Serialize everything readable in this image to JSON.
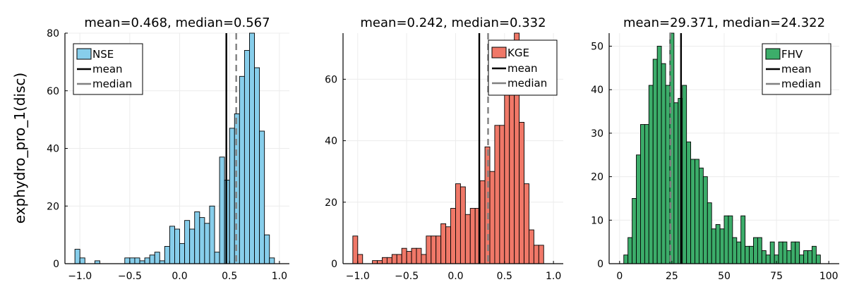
{
  "colors": {
    "nse": "#87CEEB",
    "kge": "#F07868",
    "fhv": "#3CAD6A",
    "mean": "#000000",
    "median": "#808080"
  },
  "chart_data": [
    {
      "type": "bar",
      "title": "mean=0.468, median=0.567",
      "ylabel": "exphydro_pro_1(disc)",
      "xlim": [
        -1.15,
        1.1
      ],
      "ylim": [
        0,
        80
      ],
      "xticks": [
        -1.0,
        -0.5,
        0.0,
        0.5,
        1.0
      ],
      "xtick_labels": [
        "−1.0",
        "−0.5",
        "0.0",
        "0.5",
        "1.0"
      ],
      "yticks": [
        0,
        20,
        40,
        60,
        80
      ],
      "ytick_labels": [
        "0",
        "20",
        "40",
        "60",
        "80"
      ],
      "bin_start": -1.05,
      "bin_width": 0.05,
      "values": [
        5,
        2,
        0,
        0,
        1,
        0,
        0,
        0,
        0,
        0,
        2,
        2,
        2,
        1,
        2,
        3,
        4,
        1,
        6,
        13,
        12,
        7,
        15,
        12,
        18,
        16,
        14,
        20,
        4,
        37,
        29,
        47,
        52,
        65,
        74,
        82,
        68,
        46,
        10,
        2
      ],
      "mean": 0.468,
      "median": 0.567,
      "legend": [
        "NSE",
        "mean",
        "median"
      ],
      "legend_position": "top-left",
      "color_key": "nse"
    },
    {
      "type": "bar",
      "title": "mean=0.242, median=0.332",
      "ylabel": "",
      "xlim": [
        -1.15,
        1.1
      ],
      "ylim": [
        0,
        75
      ],
      "xticks": [
        -1.0,
        -0.5,
        0.0,
        0.5,
        1.0
      ],
      "xtick_labels": [
        "−1.0",
        "−0.5",
        "0.0",
        "0.5",
        "1.0"
      ],
      "yticks": [
        0,
        20,
        40,
        60
      ],
      "ytick_labels": [
        "0",
        "20",
        "40",
        "60"
      ],
      "bin_start": -1.05,
      "bin_width": 0.05,
      "values": [
        9,
        3,
        0,
        0,
        1,
        1,
        2,
        2,
        3,
        3,
        5,
        4,
        5,
        5,
        3,
        9,
        9,
        9,
        13,
        12,
        18,
        26,
        25,
        16,
        18,
        18,
        27,
        38,
        30,
        45,
        45,
        60,
        66,
        75,
        46,
        26,
        11,
        6,
        6,
        0
      ],
      "mean": 0.242,
      "median": 0.332,
      "legend": [
        "KGE",
        "mean",
        "median"
      ],
      "legend_position": "top-right",
      "color_key": "kge"
    },
    {
      "type": "bar",
      "title": "mean=29.371, median=24.322",
      "ylabel": "",
      "xlim": [
        -5,
        105
      ],
      "ylim": [
        0,
        53
      ],
      "xticks": [
        0,
        25,
        50,
        75,
        100
      ],
      "xtick_labels": [
        "0",
        "25",
        "50",
        "75",
        "100"
      ],
      "yticks": [
        0,
        10,
        20,
        30,
        40,
        50
      ],
      "ytick_labels": [
        "0",
        "10",
        "20",
        "30",
        "40",
        "50"
      ],
      "bin_start": 2,
      "bin_width": 2,
      "values": [
        2,
        6,
        15,
        25,
        32,
        32,
        41,
        47,
        50,
        46,
        41,
        53,
        37,
        38,
        41,
        28,
        24,
        24,
        22,
        20,
        14,
        8,
        9,
        8,
        11,
        11,
        6,
        5,
        11,
        4,
        4,
        6,
        6,
        3,
        2,
        5,
        2,
        5,
        5,
        3,
        5,
        5,
        2,
        3,
        3,
        4,
        2
      ],
      "mean": 29.371,
      "median": 24.322,
      "legend": [
        "FHV",
        "mean",
        "median"
      ],
      "legend_position": "top-right",
      "color_key": "fhv"
    }
  ]
}
